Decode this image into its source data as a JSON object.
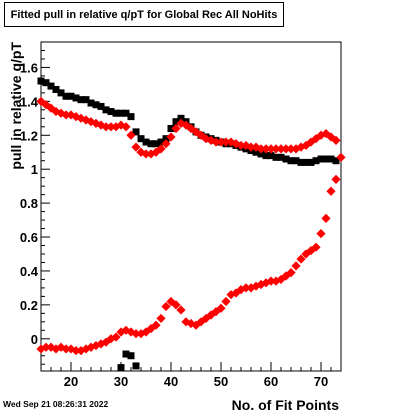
{
  "chart_data": {
    "type": "scatter",
    "title": "Fitted pull in relative q/pT for Global Rec All NoHits",
    "xlabel": "No. of Fit Points",
    "ylabel": "pull in relative q/pT",
    "xlim": [
      14,
      74
    ],
    "ylim": [
      -0.19,
      1.75
    ],
    "x_ticks": [
      20,
      30,
      40,
      50,
      60,
      70
    ],
    "y_ticks": [
      0,
      0.2,
      0.4,
      0.6,
      0.8,
      1,
      1.2,
      1.4,
      1.6
    ],
    "x_tick_labels": [
      "20",
      "30",
      "40",
      "50",
      "60",
      "70"
    ],
    "y_tick_labels": [
      "0",
      "0.2",
      "0.4",
      "0.6",
      "0.8",
      "1",
      "1.2",
      "1.4",
      "1.6"
    ],
    "grid": false,
    "legend": "none",
    "series": [
      {
        "marker": "square",
        "color": "#000000",
        "points": [
          [
            14,
            1.52
          ],
          [
            15,
            1.51
          ],
          [
            16,
            1.49
          ],
          [
            17,
            1.47
          ],
          [
            18,
            1.45
          ],
          [
            19,
            1.43
          ],
          [
            20,
            1.43
          ],
          [
            21,
            1.42
          ],
          [
            22,
            1.41
          ],
          [
            23,
            1.41
          ],
          [
            24,
            1.39
          ],
          [
            25,
            1.38
          ],
          [
            26,
            1.37
          ],
          [
            27,
            1.35
          ],
          [
            28,
            1.34
          ],
          [
            29,
            1.33
          ],
          [
            30,
            1.33
          ],
          [
            31,
            1.33
          ],
          [
            32,
            1.31
          ],
          [
            33,
            1.22
          ],
          [
            34,
            1.18
          ],
          [
            35,
            1.16
          ],
          [
            36,
            1.15
          ],
          [
            37,
            1.15
          ],
          [
            38,
            1.16
          ],
          [
            39,
            1.18
          ],
          [
            40,
            1.24
          ],
          [
            41,
            1.28
          ],
          [
            42,
            1.3
          ],
          [
            43,
            1.28
          ],
          [
            44,
            1.25
          ],
          [
            45,
            1.22
          ],
          [
            46,
            1.2
          ],
          [
            47,
            1.19
          ],
          [
            48,
            1.18
          ],
          [
            49,
            1.17
          ],
          [
            50,
            1.16
          ],
          [
            51,
            1.15
          ],
          [
            52,
            1.15
          ],
          [
            53,
            1.14
          ],
          [
            54,
            1.13
          ],
          [
            55,
            1.12
          ],
          [
            56,
            1.11
          ],
          [
            57,
            1.1
          ],
          [
            58,
            1.09
          ],
          [
            59,
            1.08
          ],
          [
            60,
            1.08
          ],
          [
            61,
            1.07
          ],
          [
            62,
            1.07
          ],
          [
            63,
            1.06
          ],
          [
            64,
            1.05
          ],
          [
            65,
            1.05
          ],
          [
            66,
            1.04
          ],
          [
            67,
            1.04
          ],
          [
            68,
            1.04
          ],
          [
            69,
            1.05
          ],
          [
            70,
            1.06
          ],
          [
            71,
            1.06
          ],
          [
            72,
            1.06
          ],
          [
            73,
            1.05
          ],
          [
            30,
            -0.17
          ],
          [
            31,
            -0.09
          ],
          [
            32,
            -0.1
          ],
          [
            33,
            -0.16
          ]
        ]
      },
      {
        "marker": "diamond",
        "color": "#ff0000",
        "points": [
          [
            14,
            1.4
          ],
          [
            15,
            1.38
          ],
          [
            16,
            1.36
          ],
          [
            17,
            1.34
          ],
          [
            18,
            1.33
          ],
          [
            19,
            1.32
          ],
          [
            20,
            1.32
          ],
          [
            21,
            1.31
          ],
          [
            22,
            1.3
          ],
          [
            23,
            1.29
          ],
          [
            24,
            1.28
          ],
          [
            25,
            1.27
          ],
          [
            26,
            1.26
          ],
          [
            27,
            1.25
          ],
          [
            28,
            1.25
          ],
          [
            29,
            1.25
          ],
          [
            30,
            1.26
          ],
          [
            31,
            1.25
          ],
          [
            32,
            1.2
          ],
          [
            33,
            1.13
          ],
          [
            34,
            1.1
          ],
          [
            35,
            1.09
          ],
          [
            36,
            1.09
          ],
          [
            37,
            1.1
          ],
          [
            38,
            1.12
          ],
          [
            39,
            1.15
          ],
          [
            40,
            1.19
          ],
          [
            41,
            1.24
          ],
          [
            42,
            1.27
          ],
          [
            43,
            1.26
          ],
          [
            44,
            1.24
          ],
          [
            45,
            1.22
          ],
          [
            46,
            1.2
          ],
          [
            47,
            1.18
          ],
          [
            48,
            1.17
          ],
          [
            49,
            1.16
          ],
          [
            50,
            1.16
          ],
          [
            51,
            1.16
          ],
          [
            52,
            1.16
          ],
          [
            53,
            1.15
          ],
          [
            54,
            1.14
          ],
          [
            55,
            1.14
          ],
          [
            56,
            1.13
          ],
          [
            57,
            1.13
          ],
          [
            58,
            1.12
          ],
          [
            59,
            1.12
          ],
          [
            60,
            1.12
          ],
          [
            61,
            1.12
          ],
          [
            62,
            1.12
          ],
          [
            63,
            1.12
          ],
          [
            64,
            1.12
          ],
          [
            65,
            1.12
          ],
          [
            66,
            1.13
          ],
          [
            67,
            1.14
          ],
          [
            68,
            1.16
          ],
          [
            69,
            1.18
          ],
          [
            70,
            1.2
          ],
          [
            71,
            1.21
          ],
          [
            72,
            1.19
          ],
          [
            73,
            1.17
          ],
          [
            14,
            -0.06
          ],
          [
            15,
            -0.05
          ],
          [
            16,
            -0.05
          ],
          [
            17,
            -0.06
          ],
          [
            18,
            -0.05
          ],
          [
            19,
            -0.06
          ],
          [
            20,
            -0.06
          ],
          [
            21,
            -0.07
          ],
          [
            22,
            -0.07
          ],
          [
            23,
            -0.06
          ],
          [
            24,
            -0.05
          ],
          [
            25,
            -0.04
          ],
          [
            26,
            -0.03
          ],
          [
            27,
            -0.02
          ],
          [
            28,
            0.0
          ],
          [
            29,
            0.01
          ],
          [
            30,
            0.04
          ],
          [
            31,
            0.05
          ],
          [
            32,
            0.04
          ],
          [
            33,
            0.03
          ],
          [
            34,
            0.03
          ],
          [
            35,
            0.04
          ],
          [
            36,
            0.06
          ],
          [
            37,
            0.08
          ],
          [
            38,
            0.12
          ],
          [
            39,
            0.19
          ],
          [
            40,
            0.22
          ],
          [
            41,
            0.2
          ],
          [
            42,
            0.17
          ],
          [
            43,
            0.1
          ],
          [
            44,
            0.09
          ],
          [
            45,
            0.08
          ],
          [
            46,
            0.1
          ],
          [
            47,
            0.12
          ],
          [
            48,
            0.14
          ],
          [
            49,
            0.16
          ],
          [
            50,
            0.18
          ],
          [
            51,
            0.22
          ],
          [
            52,
            0.26
          ],
          [
            53,
            0.27
          ],
          [
            54,
            0.29
          ],
          [
            55,
            0.3
          ],
          [
            56,
            0.3
          ],
          [
            57,
            0.31
          ],
          [
            58,
            0.32
          ],
          [
            59,
            0.33
          ],
          [
            60,
            0.34
          ],
          [
            61,
            0.34
          ],
          [
            62,
            0.35
          ],
          [
            63,
            0.37
          ],
          [
            64,
            0.39
          ],
          [
            65,
            0.43
          ],
          [
            66,
            0.47
          ],
          [
            67,
            0.5
          ],
          [
            68,
            0.52
          ],
          [
            69,
            0.54
          ],
          [
            70,
            0.62
          ],
          [
            71,
            0.71
          ],
          [
            72,
            0.87
          ],
          [
            73,
            0.94
          ],
          [
            74,
            1.07
          ]
        ]
      }
    ]
  },
  "stamp": "Wed Sep 21 08:26:31 2022"
}
